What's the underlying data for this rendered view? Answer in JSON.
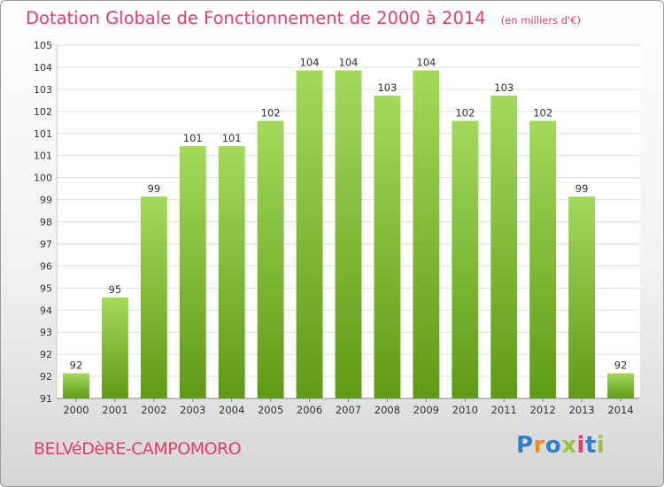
{
  "title": "Dotation Globale de Fonctionnement de 2000 à 2014",
  "subtitle": "(en milliers d'€)",
  "commune": "BELVéDèRE-CAMPOMORO",
  "brand": {
    "letters": [
      "P",
      "r",
      "o",
      "x",
      "i",
      "t",
      "i"
    ],
    "colors": [
      "#2f7fd1",
      "#f08a24",
      "#2f7fd1",
      "#9bc33b",
      "#e0406e",
      "#2f7fd1",
      "#9bc33b"
    ]
  },
  "colors": {
    "bar_top": "#a5d95a",
    "bar_bottom": "#5f9a17",
    "accent": "#e0406e",
    "grid": "#dddddd"
  },
  "chart_data": {
    "type": "bar",
    "categories": [
      "2000",
      "2001",
      "2002",
      "2003",
      "2004",
      "2005",
      "2006",
      "2007",
      "2008",
      "2009",
      "2010",
      "2011",
      "2012",
      "2013",
      "2014"
    ],
    "values": [
      92,
      95,
      99,
      101,
      101,
      102,
      104,
      104,
      103,
      104,
      102,
      103,
      102,
      99,
      92
    ],
    "data_labels": [
      "92",
      "95",
      "99",
      "101",
      "101",
      "102",
      "104",
      "104",
      "103",
      "104",
      "102",
      "103",
      "102",
      "99",
      "92"
    ],
    "title": "Dotation Globale de Fonctionnement de 2000 à 2014",
    "ylim": [
      91,
      105
    ],
    "yticks": [
      "91",
      "92",
      "92",
      "93",
      "94",
      "95",
      "96",
      "97",
      "98",
      "99",
      "100",
      "101",
      "101",
      "102",
      "103",
      "104",
      "105"
    ],
    "grid": true
  }
}
